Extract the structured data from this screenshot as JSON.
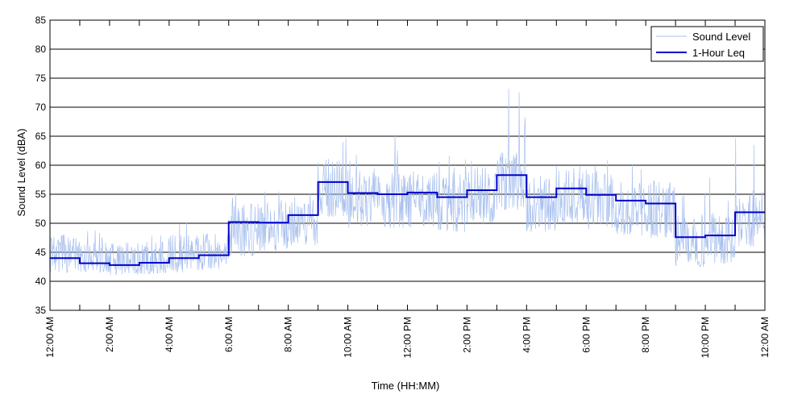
{
  "chart_data": {
    "type": "line",
    "title": "",
    "xlabel": "Time (HH:MM)",
    "ylabel": "Sound Level (dBA)",
    "ylim": [
      35,
      85
    ],
    "yticks": [
      35,
      40,
      45,
      50,
      55,
      60,
      65,
      70,
      75,
      80,
      85
    ],
    "xlim_hours": [
      0,
      24
    ],
    "xtick_hours": [
      0,
      2,
      4,
      6,
      8,
      10,
      12,
      14,
      16,
      18,
      20,
      22,
      24
    ],
    "xtick_labels": [
      "12:00 AM",
      "2:00 AM",
      "4:00 AM",
      "6:00 AM",
      "8:00 AM",
      "10:00 AM",
      "12:00 PM",
      "2:00 PM",
      "4:00 PM",
      "6:00 PM",
      "8:00 PM",
      "10:00 PM",
      "12:00 AM"
    ],
    "minor_tick_hours": [
      1,
      3,
      5,
      7,
      9,
      11,
      13,
      15,
      17,
      19,
      21,
      23
    ],
    "grid": "horizontal",
    "legend_position": "top-right",
    "series": [
      {
        "name": "Sound Level",
        "color": "#a8c0ee",
        "hourly_range": [
          [
            41.5,
            49
          ],
          [
            41.5,
            49
          ],
          [
            41,
            47
          ],
          [
            41,
            48
          ],
          [
            41.5,
            51.5
          ],
          [
            42,
            49
          ],
          [
            43,
            57.5
          ],
          [
            45,
            58
          ],
          [
            46,
            61
          ],
          [
            48,
            66
          ],
          [
            44,
            62
          ],
          [
            43,
            67
          ],
          [
            43,
            67
          ],
          [
            43,
            62
          ],
          [
            44,
            65
          ],
          [
            44,
            73.5
          ],
          [
            44,
            64
          ],
          [
            43,
            65
          ],
          [
            43,
            62
          ],
          [
            43,
            61
          ],
          [
            42.5,
            58
          ],
          [
            42.5,
            56
          ],
          [
            43,
            58
          ],
          [
            44,
            65.5
          ]
        ]
      },
      {
        "name": "1-Hour Leq",
        "color": "#0000cc",
        "hours": [
          0,
          1,
          2,
          3,
          4,
          5,
          6,
          7,
          8,
          9,
          10,
          11,
          12,
          13,
          14,
          15,
          16,
          17,
          18,
          19,
          20,
          21,
          22,
          23
        ],
        "values": [
          44.0,
          43.1,
          42.8,
          43.2,
          44.0,
          44.5,
          50.2,
          50.1,
          51.4,
          57.1,
          55.2,
          55.0,
          55.3,
          54.5,
          55.7,
          58.3,
          54.5,
          56.0,
          54.9,
          53.9,
          53.4,
          47.6,
          47.9,
          51.9
        ]
      }
    ]
  }
}
